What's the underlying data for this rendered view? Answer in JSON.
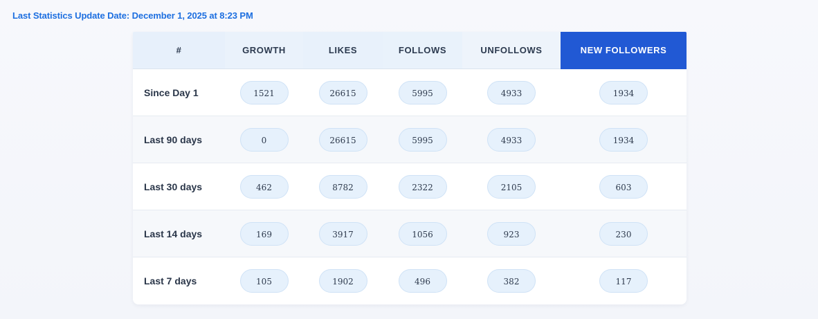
{
  "header": {
    "update_date": "Last Statistics Update Date: December 1, 2025 at 8:23 PM"
  },
  "colors": {
    "accent": "#1d6fe0",
    "active_header": "#2159d4",
    "pill_bg": "#e6f1fc"
  },
  "table": {
    "columns": [
      "#",
      "GROWTH",
      "LIKES",
      "FOLLOWS",
      "UNFOLLOWS",
      "NEW FOLLOWERS"
    ],
    "active_column": "NEW FOLLOWERS",
    "rows": [
      {
        "label": "Since Day 1",
        "values": [
          "1521",
          "26615",
          "5995",
          "4933",
          "1934"
        ]
      },
      {
        "label": "Last 90 days",
        "values": [
          "0",
          "26615",
          "5995",
          "4933",
          "1934"
        ]
      },
      {
        "label": "Last 30 days",
        "values": [
          "462",
          "8782",
          "2322",
          "2105",
          "603"
        ]
      },
      {
        "label": "Last 14 days",
        "values": [
          "169",
          "3917",
          "1056",
          "923",
          "230"
        ]
      },
      {
        "label": "Last 7 days",
        "values": [
          "105",
          "1902",
          "496",
          "382",
          "117"
        ]
      }
    ]
  }
}
